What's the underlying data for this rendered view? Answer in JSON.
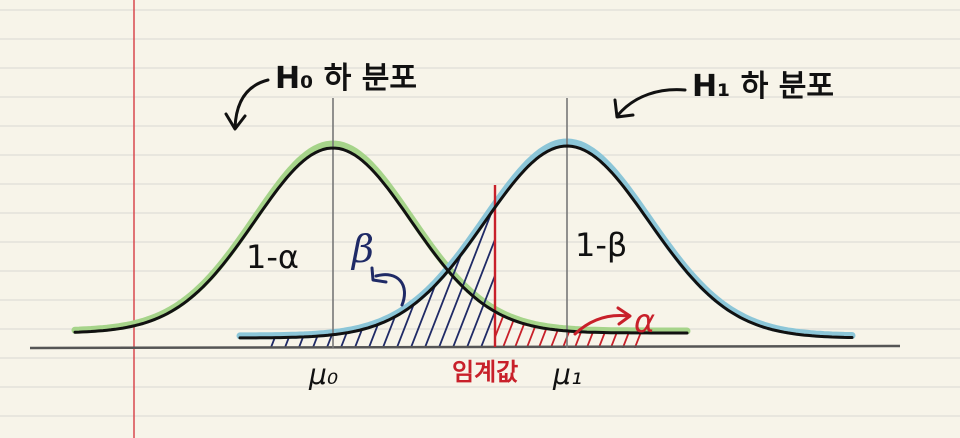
{
  "diagram": {
    "h0_label": "H₀ 하 분포",
    "h1_label": "H₁ 하 분포",
    "region_h0_center": "1-α",
    "region_h1_center": "1-β",
    "beta_label": "β",
    "alpha_label": "α",
    "mu0_label": "μ₀",
    "mu1_label": "μ₁",
    "critical_value_label": "임계값"
  },
  "colors": {
    "paper": "#f7f4e9",
    "rule_line": "#d9d8d3",
    "margin_line": "#d8484f",
    "h0_highlight": "#a6d48a",
    "h1_highlight": "#8cc6d8",
    "curve_ink": "#111111",
    "beta_ink": "#1f2a66",
    "alpha_ink": "#c8202a"
  }
}
